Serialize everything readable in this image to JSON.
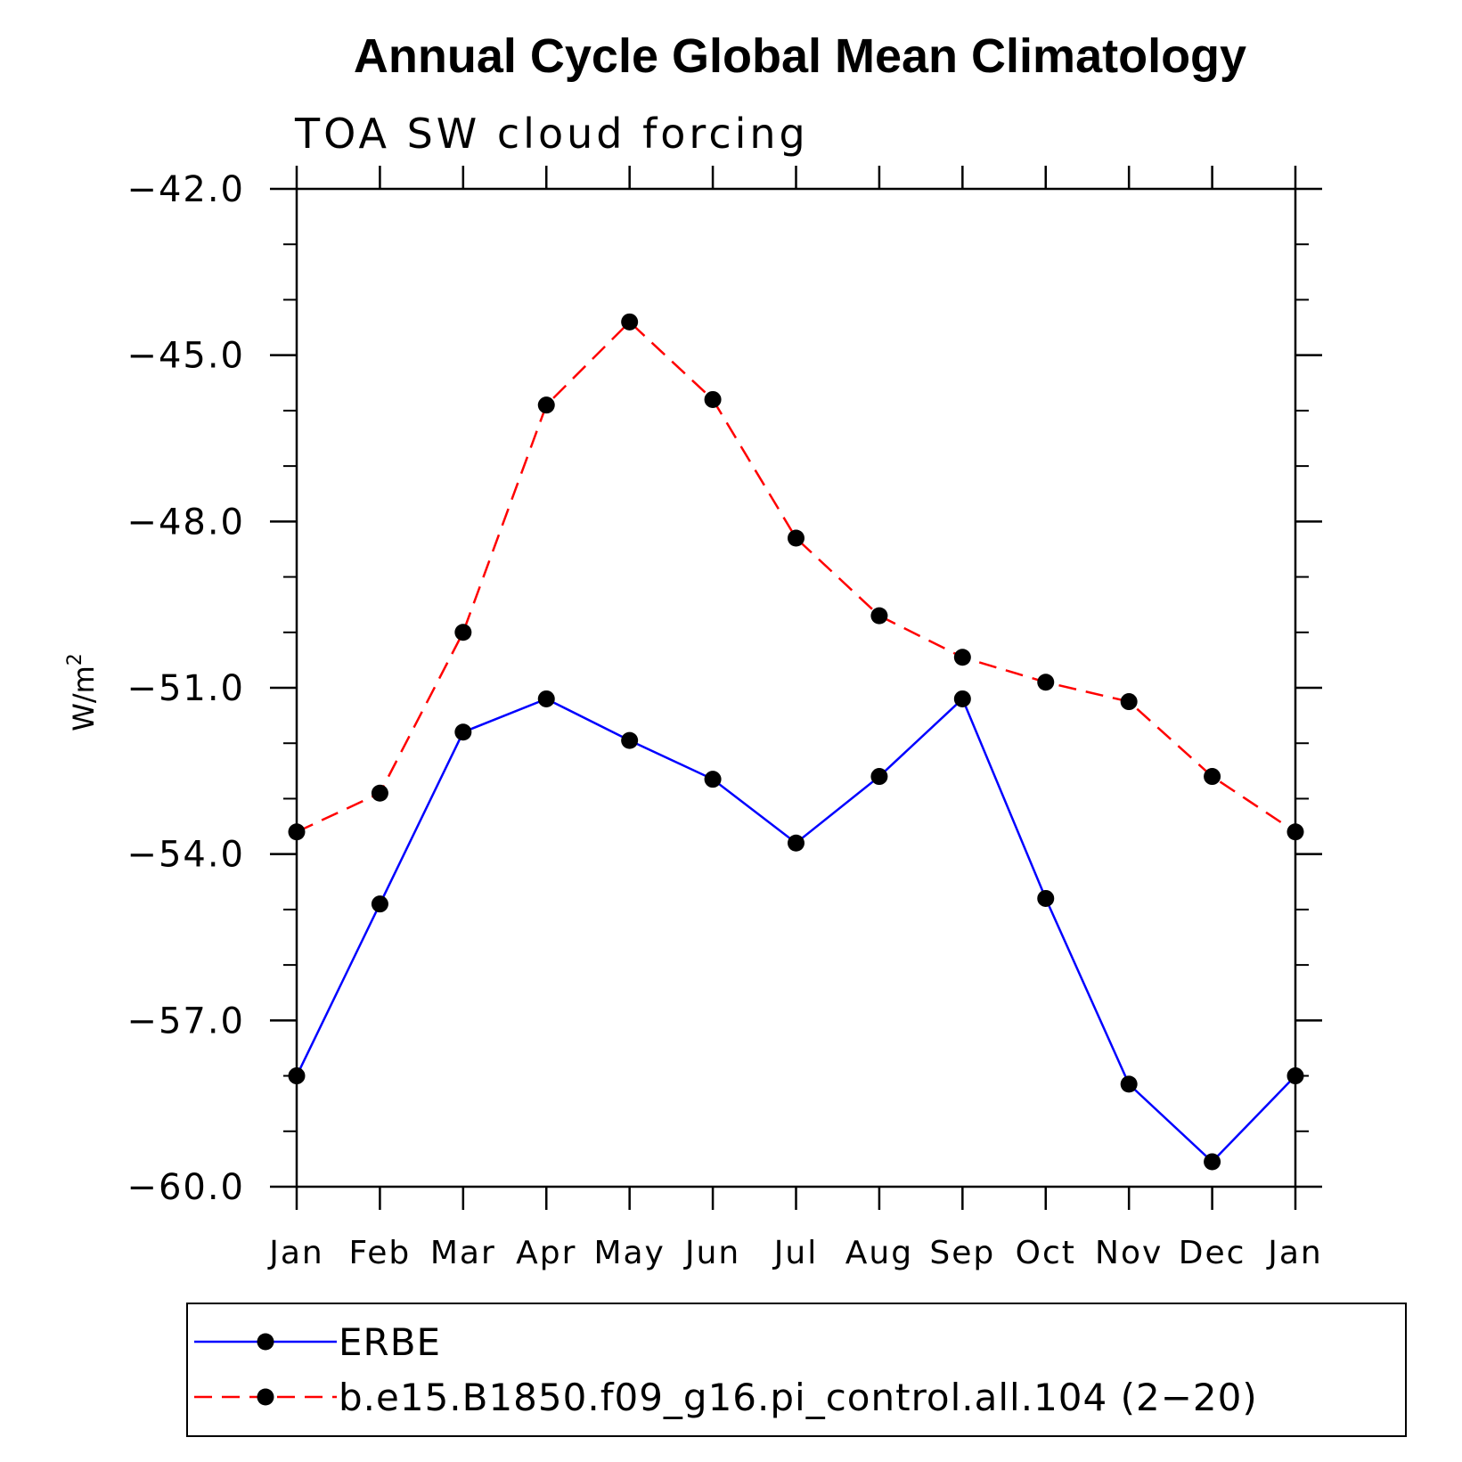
{
  "chart_data": {
    "type": "line",
    "title": "Annual Cycle Global Mean Climatology",
    "subtitle": "TOA SW cloud forcing",
    "ylabel": "W/m",
    "ylabel_sup": "2",
    "xlabel": "",
    "categories": [
      "Jan",
      "Feb",
      "Mar",
      "Apr",
      "May",
      "Jun",
      "Jul",
      "Aug",
      "Sep",
      "Oct",
      "Nov",
      "Dec",
      "Jan"
    ],
    "ylim": [
      -60.0,
      -42.0
    ],
    "yticks": [
      -42.0,
      -45.0,
      -48.0,
      -51.0,
      -54.0,
      -57.0,
      -60.0
    ],
    "ytick_labels": [
      "−42.0",
      "−45.0",
      "−48.0",
      "−51.0",
      "−54.0",
      "−57.0",
      "−60.0"
    ],
    "grid": false,
    "legend_position": "bottom",
    "series": [
      {
        "name": "ERBE",
        "color": "#0000ff",
        "line_style": "solid",
        "marker": "filled-circle",
        "values": [
          -58.0,
          -54.9,
          -51.8,
          -51.2,
          -51.95,
          -52.65,
          -53.8,
          -52.6,
          -51.2,
          -54.8,
          -58.15,
          -59.55,
          -58.0
        ]
      },
      {
        "name": "b.e15.B1850.f09_g16.pi_control.all.104 (2−20)",
        "color": "#ff0000",
        "line_style": "dashed",
        "marker": "filled-circle",
        "values": [
          -53.6,
          -52.9,
          -50.0,
          -45.9,
          -44.4,
          -45.8,
          -48.3,
          -49.7,
          -50.45,
          -50.9,
          -51.25,
          -52.6,
          -53.6
        ]
      }
    ]
  }
}
